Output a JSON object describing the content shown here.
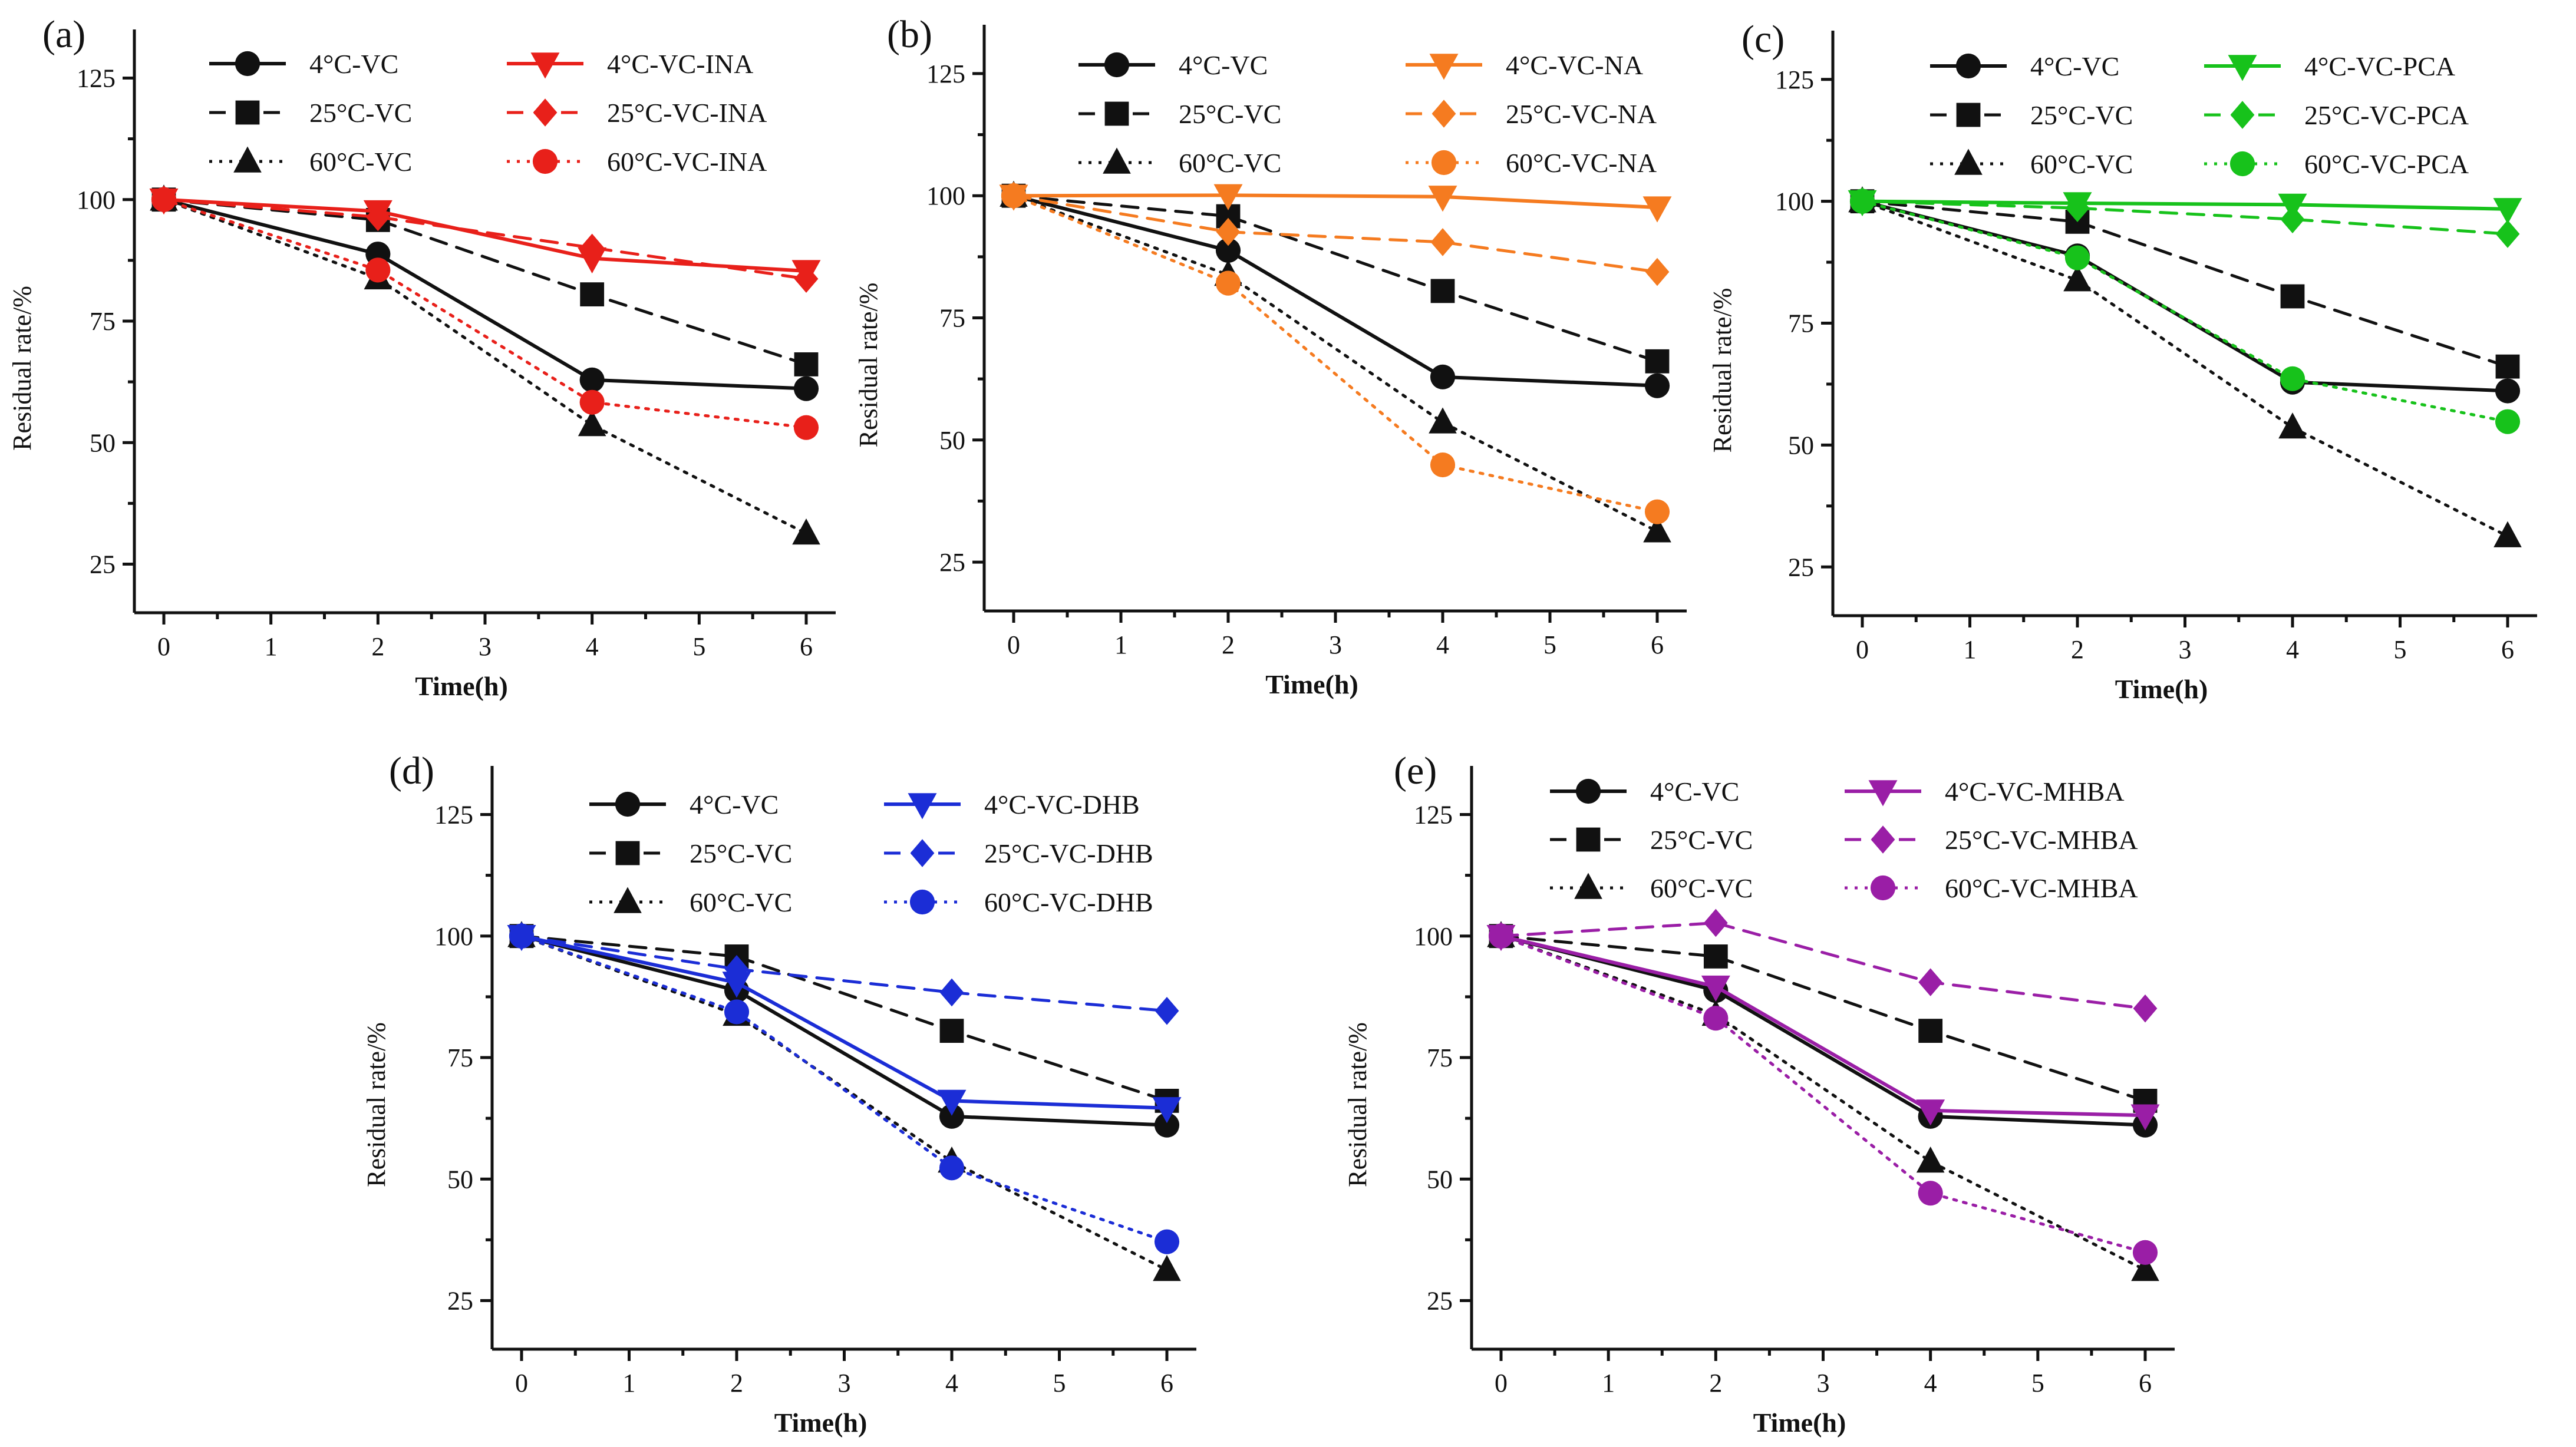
{
  "figure": {
    "panels": [
      "(a)",
      "(b)",
      "(c)",
      "(d)",
      "(e)"
    ]
  },
  "colors": {
    "control": "#111111",
    "INA": "#e8201a",
    "NA": "#f57b20",
    "PCA": "#17c21b",
    "DHB": "#1b2dd6",
    "MHBA": "#9a1ea6"
  },
  "chart_data": [
    {
      "type": "line",
      "panel_label": "(a)",
      "xlabel": "Time(h)",
      "ylabel": "Residual rate/%",
      "xlim": [
        0,
        6
      ],
      "ylim": [
        15,
        135
      ],
      "xticks": [
        0,
        1,
        2,
        3,
        4,
        5,
        6
      ],
      "yticks": [
        25,
        50,
        75,
        100,
        125
      ],
      "x": [
        0,
        2,
        4,
        6
      ],
      "series": [
        {
          "name": "4°C-VC",
          "group": "control",
          "style": "solid",
          "marker": "circle",
          "values": [
            100,
            88.8,
            62.9,
            61.1
          ]
        },
        {
          "name": "25°C-VC",
          "group": "control",
          "style": "dashed",
          "marker": "square",
          "values": [
            100,
            95.8,
            80.5,
            66.1
          ]
        },
        {
          "name": "60°C-VC",
          "group": "control",
          "style": "dotted",
          "marker": "triangle",
          "values": [
            100,
            83.8,
            53.6,
            31.3
          ]
        },
        {
          "name": "4°C-VC-INA",
          "group": "INA",
          "style": "solid",
          "marker": "triangle-down",
          "values": [
            100,
            97.6,
            87.9,
            85.3
          ]
        },
        {
          "name": "25°C-VC-INA",
          "group": "INA",
          "style": "dashed",
          "marker": "diamond",
          "values": [
            100,
            96.4,
            90.1,
            83.7
          ]
        },
        {
          "name": "60°C-VC-INA",
          "group": "INA",
          "style": "dotted",
          "marker": "circle",
          "values": [
            100,
            85.5,
            58.3,
            53.1
          ]
        }
      ]
    },
    {
      "type": "line",
      "panel_label": "(b)",
      "xlabel": "Time(h)",
      "ylabel": "Residual rate/%",
      "xlim": [
        0,
        6
      ],
      "ylim": [
        15,
        135
      ],
      "xticks": [
        0,
        1,
        2,
        3,
        4,
        5,
        6
      ],
      "yticks": [
        25,
        50,
        75,
        100,
        125
      ],
      "x": [
        0,
        2,
        4,
        6
      ],
      "series": [
        {
          "name": "4°C-VC",
          "group": "control",
          "style": "solid",
          "marker": "circle",
          "values": [
            100,
            88.8,
            62.9,
            61.1
          ]
        },
        {
          "name": "25°C-VC",
          "group": "control",
          "style": "dashed",
          "marker": "square",
          "values": [
            100,
            95.8,
            80.5,
            66.1
          ]
        },
        {
          "name": "60°C-VC",
          "group": "control",
          "style": "dotted",
          "marker": "triangle",
          "values": [
            100,
            83.8,
            53.6,
            31.3
          ]
        },
        {
          "name": "4°C-VC-NA",
          "group": "NA",
          "style": "solid",
          "marker": "triangle-down",
          "values": [
            100,
            100.1,
            99.8,
            97.6
          ]
        },
        {
          "name": "25°C-VC-NA",
          "group": "NA",
          "style": "dashed",
          "marker": "diamond",
          "values": [
            100,
            92.6,
            90.5,
            84.4
          ]
        },
        {
          "name": "60°C-VC-NA",
          "group": "NA",
          "style": "dotted",
          "marker": "circle",
          "values": [
            100,
            82.1,
            44.9,
            35.3
          ]
        }
      ]
    },
    {
      "type": "line",
      "panel_label": "(c)",
      "xlabel": "Time(h)",
      "ylabel": "Residual rate/%",
      "xlim": [
        0,
        6
      ],
      "ylim": [
        15,
        135
      ],
      "xticks": [
        0,
        1,
        2,
        3,
        4,
        5,
        6
      ],
      "yticks": [
        25,
        50,
        75,
        100,
        125
      ],
      "x": [
        0,
        2,
        4,
        6
      ],
      "series": [
        {
          "name": "4°C-VC",
          "group": "control",
          "style": "solid",
          "marker": "circle",
          "values": [
            100,
            88.8,
            62.9,
            61.1
          ]
        },
        {
          "name": "25°C-VC",
          "group": "control",
          "style": "dashed",
          "marker": "square",
          "values": [
            100,
            95.8,
            80.5,
            66.1
          ]
        },
        {
          "name": "60°C-VC",
          "group": "control",
          "style": "dotted",
          "marker": "triangle",
          "values": [
            100,
            83.8,
            53.6,
            31.3
          ]
        },
        {
          "name": "4°C-VC-PCA",
          "group": "PCA",
          "style": "solid",
          "marker": "triangle-down",
          "values": [
            100,
            99.6,
            99.3,
            98.4
          ]
        },
        {
          "name": "25°C-VC-PCA",
          "group": "PCA",
          "style": "dashed",
          "marker": "diamond",
          "values": [
            100,
            98.6,
            96.3,
            93.3
          ]
        },
        {
          "name": "60°C-VC-PCA",
          "group": "PCA",
          "style": "dotted",
          "marker": "circle",
          "values": [
            100,
            88.4,
            63.6,
            54.8
          ]
        }
      ]
    },
    {
      "type": "line",
      "panel_label": "(d)",
      "xlabel": "Time(h)",
      "ylabel": "Residual rate/%",
      "xlim": [
        0,
        6
      ],
      "ylim": [
        15,
        135
      ],
      "xticks": [
        0,
        1,
        2,
        3,
        4,
        5,
        6
      ],
      "yticks": [
        25,
        50,
        75,
        100,
        125
      ],
      "x": [
        0,
        2,
        4,
        6
      ],
      "series": [
        {
          "name": "4°C-VC",
          "group": "control",
          "style": "solid",
          "marker": "circle",
          "values": [
            100,
            88.8,
            62.9,
            61.1
          ]
        },
        {
          "name": "25°C-VC",
          "group": "control",
          "style": "dashed",
          "marker": "square",
          "values": [
            100,
            95.8,
            80.5,
            66.1
          ]
        },
        {
          "name": "60°C-VC",
          "group": "control",
          "style": "dotted",
          "marker": "triangle",
          "values": [
            100,
            83.8,
            53.6,
            31.3
          ]
        },
        {
          "name": "4°C-VC-DHB",
          "group": "DHB",
          "style": "solid",
          "marker": "triangle-down",
          "values": [
            100,
            90.4,
            66.1,
            64.6
          ]
        },
        {
          "name": "25°C-VC-DHB",
          "group": "DHB",
          "style": "dashed",
          "marker": "diamond",
          "values": [
            100,
            93.2,
            88.4,
            84.6
          ]
        },
        {
          "name": "60°C-VC-DHB",
          "group": "DHB",
          "style": "dotted",
          "marker": "circle",
          "values": [
            100,
            84.4,
            52.3,
            37.1
          ]
        }
      ]
    },
    {
      "type": "line",
      "panel_label": "(e)",
      "xlabel": "Time(h)",
      "ylabel": "Residual rate/%",
      "xlim": [
        0,
        6
      ],
      "ylim": [
        15,
        135
      ],
      "xticks": [
        0,
        1,
        2,
        3,
        4,
        5,
        6
      ],
      "yticks": [
        25,
        50,
        75,
        100,
        125
      ],
      "x": [
        0,
        2,
        4,
        6
      ],
      "series": [
        {
          "name": "4°C-VC",
          "group": "control",
          "style": "solid",
          "marker": "circle",
          "values": [
            100,
            88.8,
            62.9,
            61.1
          ]
        },
        {
          "name": "25°C-VC",
          "group": "control",
          "style": "dashed",
          "marker": "square",
          "values": [
            100,
            95.8,
            80.5,
            66.1
          ]
        },
        {
          "name": "60°C-VC",
          "group": "control",
          "style": "dotted",
          "marker": "triangle",
          "values": [
            100,
            83.8,
            53.6,
            31.3
          ]
        },
        {
          "name": "4°C-VC-MHBA",
          "group": "MHBA",
          "style": "solid",
          "marker": "triangle-down",
          "values": [
            100,
            89.6,
            64.1,
            63.1
          ]
        },
        {
          "name": "25°C-VC-MHBA",
          "group": "MHBA",
          "style": "dashed",
          "marker": "diamond",
          "values": [
            100,
            102.7,
            90.5,
            85.1
          ]
        },
        {
          "name": "60°C-VC-MHBA",
          "group": "MHBA",
          "style": "dotted",
          "marker": "circle",
          "values": [
            100,
            83.1,
            47.1,
            34.9
          ]
        }
      ]
    }
  ]
}
